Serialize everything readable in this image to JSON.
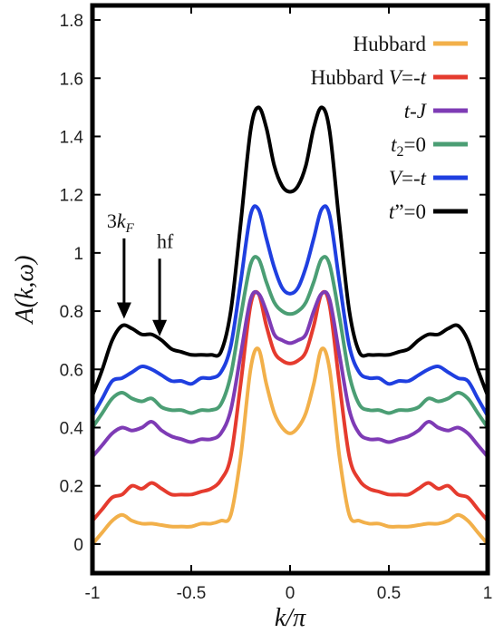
{
  "chart_data": {
    "type": "line",
    "xlabel": "k/π",
    "ylabel": "A(k,ω)",
    "xlim": [
      -1,
      1
    ],
    "ylim": [
      -0.1,
      1.85
    ],
    "xticks": [
      -1,
      -0.5,
      0,
      0.5,
      1
    ],
    "xtick_labels": [
      "-1",
      "-0.5",
      "0",
      "0.5",
      "1"
    ],
    "yticks": [
      0,
      0.2,
      0.4,
      0.6,
      0.8,
      1,
      1.2,
      1.4,
      1.6,
      1.8
    ],
    "ytick_labels": [
      "0",
      "0.2",
      "0.4",
      "0.6",
      "0.8",
      "1",
      "1.2",
      "1.4",
      "1.6",
      "1.8"
    ],
    "grid": false,
    "legend_position": "top-right",
    "x": [
      -1.0,
      -0.95,
      -0.9,
      -0.85,
      -0.8,
      -0.75,
      -0.7,
      -0.65,
      -0.6,
      -0.55,
      -0.5,
      -0.45,
      -0.4,
      -0.35,
      -0.3,
      -0.25,
      -0.2,
      -0.16,
      -0.12,
      -0.08,
      -0.04,
      0.0,
      0.04,
      0.08,
      0.12,
      0.16,
      0.2,
      0.25,
      0.3,
      0.35,
      0.4,
      0.45,
      0.5,
      0.55,
      0.6,
      0.65,
      0.7,
      0.75,
      0.8,
      0.85,
      0.9,
      0.95,
      1.0
    ],
    "series": [
      {
        "name": "Hubbard",
        "color": "#F2B04A",
        "values": [
          0.0,
          0.04,
          0.08,
          0.1,
          0.08,
          0.07,
          0.07,
          0.065,
          0.06,
          0.06,
          0.06,
          0.07,
          0.07,
          0.08,
          0.1,
          0.3,
          0.6,
          0.67,
          0.55,
          0.45,
          0.4,
          0.38,
          0.4,
          0.45,
          0.55,
          0.67,
          0.6,
          0.3,
          0.1,
          0.08,
          0.07,
          0.07,
          0.06,
          0.06,
          0.06,
          0.065,
          0.07,
          0.07,
          0.08,
          0.1,
          0.08,
          0.04,
          0.0
        ]
      },
      {
        "name": "Hubbard V=-t",
        "color": "#E53B2E",
        "values": [
          0.08,
          0.12,
          0.16,
          0.17,
          0.2,
          0.19,
          0.21,
          0.19,
          0.17,
          0.17,
          0.17,
          0.18,
          0.19,
          0.22,
          0.3,
          0.55,
          0.82,
          0.86,
          0.75,
          0.66,
          0.63,
          0.62,
          0.63,
          0.66,
          0.75,
          0.86,
          0.82,
          0.55,
          0.3,
          0.22,
          0.19,
          0.18,
          0.17,
          0.17,
          0.17,
          0.19,
          0.21,
          0.19,
          0.2,
          0.17,
          0.16,
          0.12,
          0.08
        ]
      },
      {
        "name": "t-J",
        "color": "#7E3BB5",
        "values": [
          0.3,
          0.34,
          0.38,
          0.4,
          0.39,
          0.4,
          0.42,
          0.39,
          0.37,
          0.36,
          0.35,
          0.36,
          0.36,
          0.38,
          0.46,
          0.65,
          0.84,
          0.86,
          0.8,
          0.72,
          0.7,
          0.69,
          0.7,
          0.72,
          0.8,
          0.86,
          0.84,
          0.65,
          0.46,
          0.38,
          0.36,
          0.36,
          0.35,
          0.36,
          0.37,
          0.39,
          0.42,
          0.4,
          0.39,
          0.4,
          0.38,
          0.34,
          0.3
        ]
      },
      {
        "name": "t2=0",
        "color": "#4B9E74",
        "values": [
          0.4,
          0.45,
          0.5,
          0.52,
          0.5,
          0.49,
          0.5,
          0.47,
          0.46,
          0.46,
          0.45,
          0.46,
          0.46,
          0.48,
          0.58,
          0.78,
          0.96,
          0.98,
          0.9,
          0.83,
          0.8,
          0.79,
          0.8,
          0.83,
          0.9,
          0.98,
          0.96,
          0.78,
          0.58,
          0.48,
          0.46,
          0.46,
          0.45,
          0.46,
          0.46,
          0.47,
          0.5,
          0.49,
          0.5,
          0.52,
          0.5,
          0.45,
          0.4
        ]
      },
      {
        "name": "V=-t",
        "color": "#1F3FE0",
        "values": [
          0.44,
          0.5,
          0.56,
          0.57,
          0.59,
          0.61,
          0.6,
          0.58,
          0.56,
          0.56,
          0.55,
          0.57,
          0.57,
          0.59,
          0.68,
          0.9,
          1.13,
          1.15,
          1.05,
          0.95,
          0.88,
          0.86,
          0.88,
          0.95,
          1.05,
          1.15,
          1.13,
          0.9,
          0.68,
          0.59,
          0.57,
          0.57,
          0.55,
          0.56,
          0.56,
          0.58,
          0.6,
          0.61,
          0.59,
          0.57,
          0.56,
          0.5,
          0.44
        ]
      },
      {
        "name": "t''=0",
        "color": "#000000",
        "values": [
          0.51,
          0.6,
          0.7,
          0.75,
          0.74,
          0.72,
          0.72,
          0.7,
          0.67,
          0.66,
          0.65,
          0.65,
          0.65,
          0.66,
          0.8,
          1.1,
          1.42,
          1.5,
          1.43,
          1.3,
          1.23,
          1.21,
          1.23,
          1.3,
          1.43,
          1.5,
          1.42,
          1.1,
          0.8,
          0.66,
          0.65,
          0.65,
          0.65,
          0.66,
          0.67,
          0.7,
          0.72,
          0.72,
          0.74,
          0.75,
          0.7,
          0.6,
          0.51
        ]
      }
    ],
    "annotations": [
      {
        "text_main": "3k",
        "text_sub": "F",
        "arrow_x": -0.84,
        "arrow_y_from": 1.05,
        "arrow_y_to": 0.78
      },
      {
        "text_main": "hf",
        "text_sub": "",
        "arrow_x": -0.66,
        "arrow_y_from": 0.98,
        "arrow_y_to": 0.72
      }
    ]
  },
  "legend": {
    "items": [
      {
        "series": "Hubbard",
        "parts": [
          {
            "t": "Hubbard",
            "s": "normal"
          }
        ]
      },
      {
        "series": "Hubbard V=-t",
        "parts": [
          {
            "t": "Hubbard ",
            "s": "normal"
          },
          {
            "t": "V",
            "s": "italic"
          },
          {
            "t": "=-",
            "s": "normal"
          },
          {
            "t": "t",
            "s": "italic"
          }
        ]
      },
      {
        "series": "t-J",
        "parts": [
          {
            "t": "t",
            "s": "italic"
          },
          {
            "t": "-",
            "s": "normal"
          },
          {
            "t": "J",
            "s": "italic"
          }
        ]
      },
      {
        "series": "t2=0",
        "parts": [
          {
            "t": "t",
            "s": "italic"
          },
          {
            "t": "2",
            "s": "sub"
          },
          {
            "t": "=0",
            "s": "normal"
          }
        ]
      },
      {
        "series": "V=-t",
        "parts": [
          {
            "t": "V",
            "s": "italic"
          },
          {
            "t": "=-",
            "s": "normal"
          },
          {
            "t": "t",
            "s": "italic"
          }
        ]
      },
      {
        "series": "t''=0",
        "parts": [
          {
            "t": "t",
            "s": "italic"
          },
          {
            "t": "”=0",
            "s": "normal"
          }
        ]
      }
    ]
  }
}
